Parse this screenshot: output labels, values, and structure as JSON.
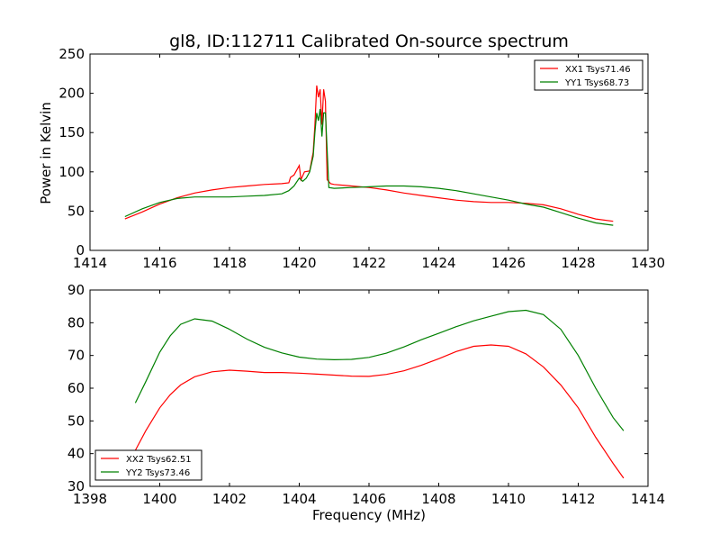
{
  "figure": {
    "title": "gl8, ID:112711 Calibrated On-source spectrum",
    "ylabel": "Power in Kelvin",
    "xlabel": "Frequency (MHz)"
  },
  "chart_data": [
    {
      "type": "line",
      "title": "gl8, ID:112711 Calibrated On-source spectrum",
      "ylabel": "Power in Kelvin",
      "xlabel": "",
      "xlim": [
        1414,
        1430
      ],
      "ylim": [
        0,
        250
      ],
      "xticks": [
        1414,
        1416,
        1418,
        1420,
        1422,
        1424,
        1426,
        1428,
        1430
      ],
      "yticks": [
        0,
        50,
        100,
        150,
        200,
        250
      ],
      "grid": false,
      "legend_position": "top-right",
      "series": [
        {
          "name": "XX1 Tsys71.46",
          "color": "#ff0000",
          "x": [
            1415.0,
            1415.5,
            1416.0,
            1416.5,
            1417.0,
            1417.5,
            1418.0,
            1418.5,
            1419.0,
            1419.5,
            1419.7,
            1419.75,
            1419.85,
            1420.0,
            1420.05,
            1420.15,
            1420.3,
            1420.4,
            1420.45,
            1420.5,
            1420.55,
            1420.6,
            1420.65,
            1420.7,
            1420.75,
            1420.8,
            1420.9,
            1421.0,
            1421.5,
            1422.0,
            1422.5,
            1423.0,
            1423.5,
            1424.0,
            1424.5,
            1425.0,
            1425.5,
            1426.0,
            1426.5,
            1427.0,
            1427.5,
            1428.0,
            1428.5,
            1429.0
          ],
          "y": [
            40,
            49,
            59,
            67,
            73,
            77,
            80,
            82,
            84,
            85,
            86,
            93,
            96,
            108,
            90,
            100,
            101,
            125,
            160,
            210,
            195,
            205,
            160,
            205,
            190,
            90,
            85,
            84,
            82,
            80,
            77,
            73,
            70,
            67,
            64,
            62,
            61,
            61,
            60,
            58,
            53,
            46,
            40,
            37
          ]
        },
        {
          "name": "YY1 Tsys68.73",
          "color": "#008000",
          "x": [
            1415.0,
            1415.5,
            1416.0,
            1416.5,
            1417.0,
            1417.5,
            1418.0,
            1418.5,
            1419.0,
            1419.5,
            1419.7,
            1419.75,
            1419.85,
            1420.0,
            1420.1,
            1420.2,
            1420.3,
            1420.4,
            1420.45,
            1420.5,
            1420.55,
            1420.6,
            1420.65,
            1420.7,
            1420.75,
            1420.85,
            1421.0,
            1421.5,
            1422.0,
            1422.5,
            1423.0,
            1423.5,
            1424.0,
            1424.5,
            1425.0,
            1425.5,
            1426.0,
            1426.5,
            1427.0,
            1427.5,
            1428.0,
            1428.5,
            1429.0
          ],
          "y": [
            43,
            53,
            61,
            66,
            68,
            68,
            68,
            69,
            70,
            72,
            76,
            78,
            82,
            92,
            88,
            92,
            100,
            120,
            150,
            175,
            165,
            180,
            145,
            175,
            175,
            80,
            79,
            80,
            81,
            82,
            82,
            81,
            79,
            76,
            72,
            68,
            64,
            59,
            55,
            48,
            41,
            35,
            32
          ]
        }
      ]
    },
    {
      "type": "line",
      "title": "",
      "ylabel": "",
      "xlabel": "Frequency (MHz)",
      "xlim": [
        1398,
        1414
      ],
      "ylim": [
        30,
        90
      ],
      "xticks": [
        1398,
        1400,
        1402,
        1404,
        1406,
        1408,
        1410,
        1412,
        1414
      ],
      "yticks": [
        30,
        40,
        50,
        60,
        70,
        80,
        90
      ],
      "grid": false,
      "legend_position": "bottom-left",
      "series": [
        {
          "name": "XX2 Tsys62.51",
          "color": "#ff0000",
          "x": [
            1399.3,
            1399.6,
            1400.0,
            1400.3,
            1400.6,
            1401.0,
            1401.5,
            1402.0,
            1402.5,
            1403.0,
            1403.5,
            1404.0,
            1404.5,
            1405.0,
            1405.5,
            1406.0,
            1406.5,
            1407.0,
            1407.5,
            1408.0,
            1408.5,
            1409.0,
            1409.5,
            1410.0,
            1410.5,
            1411.0,
            1411.5,
            1412.0,
            1412.5,
            1413.0,
            1413.3
          ],
          "y": [
            41,
            47,
            54,
            58,
            61,
            63.5,
            65,
            65.5,
            65.2,
            64.8,
            64.8,
            64.6,
            64.3,
            64,
            63.7,
            63.6,
            64.2,
            65.3,
            67,
            69,
            71.2,
            72.8,
            73.2,
            72.8,
            70.5,
            66.5,
            61,
            54,
            45,
            37,
            32.5
          ]
        },
        {
          "name": "YY2 Tsys73.46",
          "color": "#008000",
          "x": [
            1399.3,
            1399.6,
            1400.0,
            1400.3,
            1400.6,
            1401.0,
            1401.5,
            1402.0,
            1402.5,
            1403.0,
            1403.5,
            1404.0,
            1404.5,
            1405.0,
            1405.5,
            1406.0,
            1406.5,
            1407.0,
            1407.5,
            1408.0,
            1408.5,
            1409.0,
            1409.5,
            1410.0,
            1410.5,
            1411.0,
            1411.5,
            1412.0,
            1412.5,
            1413.0,
            1413.3
          ],
          "y": [
            55.5,
            62,
            71,
            76,
            79.5,
            81.2,
            80.5,
            78,
            75,
            72.5,
            70.8,
            69.5,
            68.9,
            68.7,
            68.8,
            69.4,
            70.7,
            72.6,
            74.8,
            76.8,
            78.8,
            80.6,
            82,
            83.4,
            83.8,
            82.5,
            78,
            70,
            60,
            51,
            47
          ]
        }
      ]
    }
  ]
}
